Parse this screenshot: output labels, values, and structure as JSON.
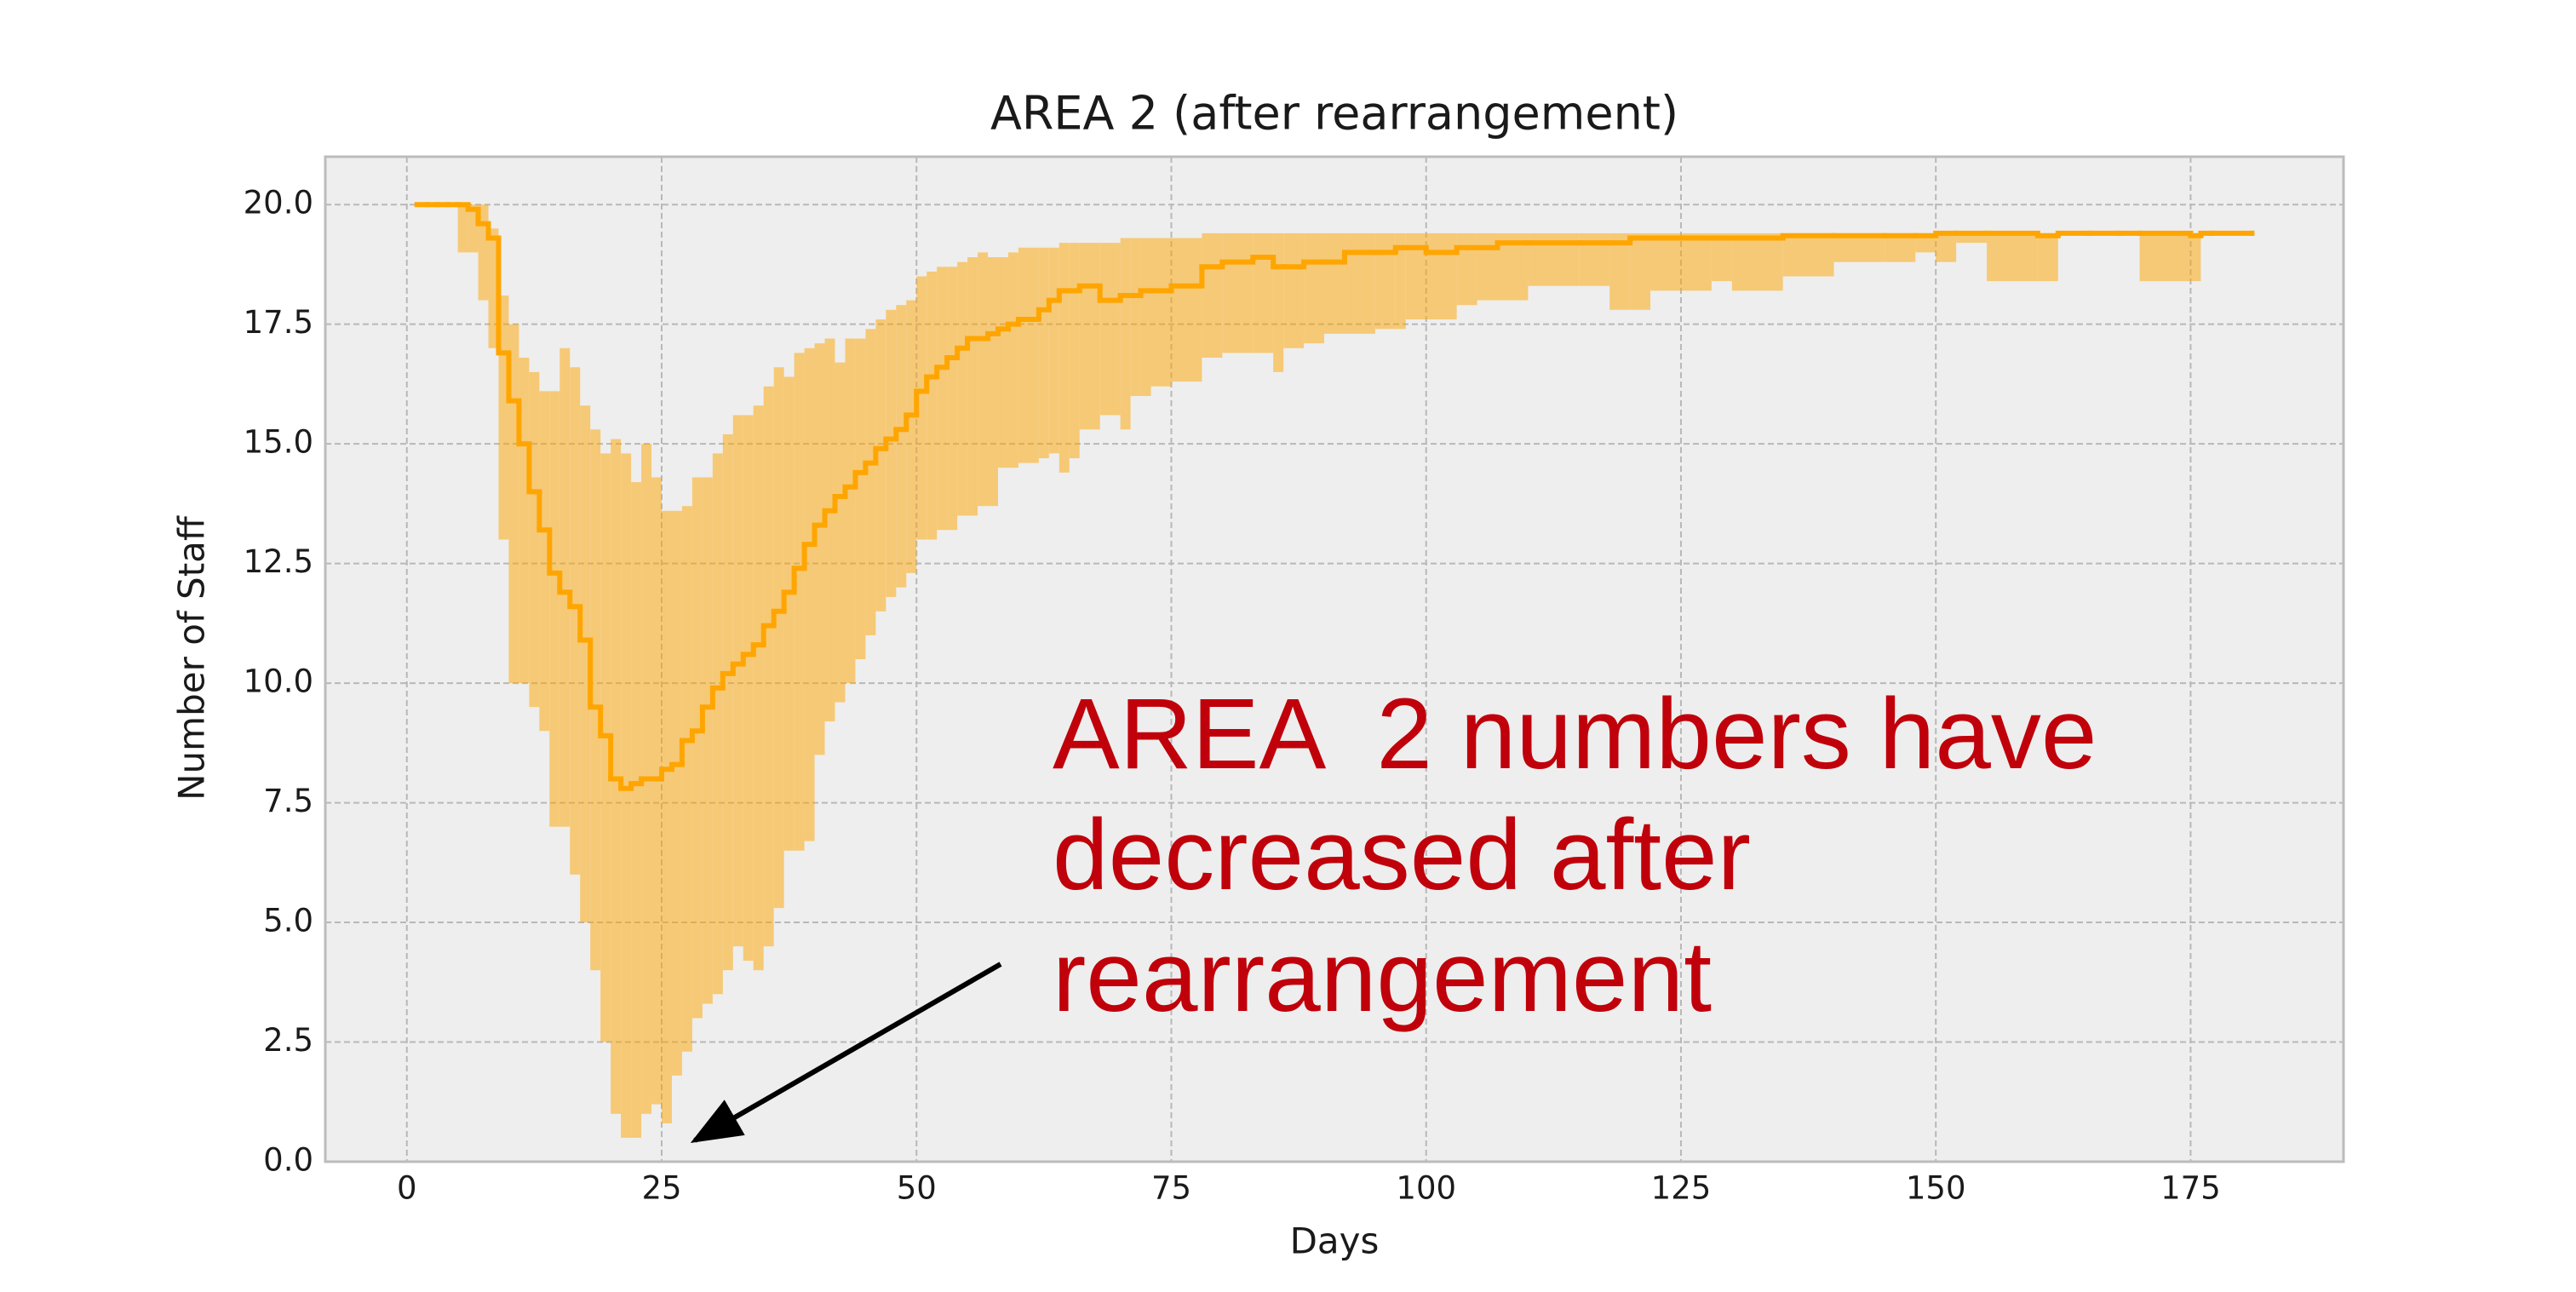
{
  "chart_data": {
    "type": "step-band",
    "title": "AREA 2 (after rearrangement)",
    "x_label": "Days",
    "y_label": "Number of Staff",
    "annotation": [
      "AREA  2 numbers have",
      "decreased after",
      "rearrangement"
    ],
    "annotation_color": "#c0000a",
    "color": "#ffa500",
    "band_alpha": 0.5,
    "grid": true,
    "xlim": [
      -8,
      190
    ],
    "ylim": [
      0,
      21
    ],
    "xticks": [
      0,
      25,
      50,
      75,
      100,
      125,
      150,
      175
    ],
    "yticks": [
      {
        "value": 0,
        "label": "0.0"
      },
      2.5,
      {
        "value": 5,
        "label": "5.0"
      },
      7.5,
      {
        "value": 10,
        "label": "10.0"
      },
      12.5,
      {
        "value": 15,
        "label": "15.0"
      },
      17.5,
      {
        "value": 20,
        "label": "20.0"
      }
    ],
    "x": [
      1,
      2,
      3,
      4,
      5,
      6,
      7,
      8,
      9,
      10,
      11,
      12,
      13,
      14,
      15,
      16,
      17,
      18,
      19,
      20,
      21,
      22,
      23,
      24,
      25,
      26,
      27,
      28,
      29,
      30,
      31,
      32,
      33,
      34,
      35,
      36,
      37,
      38,
      39,
      40,
      41,
      42,
      43,
      44,
      45,
      46,
      47,
      48,
      49,
      50,
      51,
      52,
      53,
      54,
      55,
      56,
      57,
      58,
      59,
      60,
      62,
      63,
      64,
      65,
      66,
      68,
      70,
      71,
      72,
      73,
      75,
      78,
      80,
      83,
      85,
      86,
      88,
      90,
      92,
      95,
      97,
      98,
      100,
      103,
      105,
      107,
      110,
      115,
      118,
      120,
      122,
      125,
      128,
      130,
      135,
      140,
      145,
      148,
      150,
      152,
      155,
      160,
      162,
      165,
      168,
      170,
      175,
      176,
      177,
      181
    ],
    "values": [
      20,
      20,
      20,
      20,
      20,
      19.9,
      19.6,
      19.3,
      16.9,
      15.9,
      15.0,
      14.0,
      13.2,
      12.3,
      11.9,
      11.6,
      10.9,
      9.5,
      8.9,
      8.0,
      7.8,
      7.9,
      8.0,
      8.0,
      8.2,
      8.3,
      8.8,
      9.0,
      9.5,
      9.9,
      10.2,
      10.4,
      10.6,
      10.8,
      11.2,
      11.5,
      11.9,
      12.4,
      12.9,
      13.3,
      13.6,
      13.9,
      14.1,
      14.4,
      14.6,
      14.9,
      15.1,
      15.3,
      15.6,
      16.1,
      16.4,
      16.6,
      16.8,
      17.0,
      17.2,
      17.2,
      17.3,
      17.4,
      17.5,
      17.6,
      17.8,
      18.0,
      18.2,
      18.2,
      18.3,
      18.0,
      18.1,
      18.1,
      18.2,
      18.2,
      18.3,
      18.7,
      18.8,
      18.9,
      18.7,
      18.7,
      18.8,
      18.8,
      19.0,
      19.0,
      19.1,
      19.1,
      19.0,
      19.1,
      19.1,
      19.2,
      19.2,
      19.2,
      19.2,
      19.3,
      19.3,
      19.3,
      19.3,
      19.3,
      19.35,
      19.35,
      19.35,
      19.35,
      19.4,
      19.4,
      19.4,
      19.35,
      19.4,
      19.4,
      19.4,
      19.4,
      19.35,
      19.4,
      19.4,
      19.4
    ],
    "band_upper": [
      20,
      20,
      20,
      20,
      20,
      20,
      20,
      19.5,
      18.1,
      17.5,
      16.8,
      16.5,
      16.1,
      16.1,
      17.0,
      16.6,
      15.8,
      15.3,
      14.8,
      15.1,
      14.8,
      14.2,
      15.0,
      14.3,
      13.6,
      13.6,
      13.7,
      14.3,
      14.3,
      14.8,
      15.2,
      15.6,
      15.6,
      15.8,
      16.2,
      16.6,
      16.4,
      16.9,
      17.0,
      17.1,
      17.2,
      16.7,
      17.2,
      17.2,
      17.4,
      17.6,
      17.8,
      17.9,
      18.0,
      18.5,
      18.6,
      18.7,
      18.7,
      18.8,
      18.9,
      19.0,
      18.9,
      18.9,
      19.0,
      19.1,
      19.1,
      19.1,
      19.2,
      19.2,
      19.2,
      19.2,
      19.3,
      19.3,
      19.3,
      19.3,
      19.3,
      19.4,
      19.4,
      19.4,
      19.4,
      19.4,
      19.4,
      19.4,
      19.4,
      19.4,
      19.4,
      19.4,
      19.4,
      19.4,
      19.4,
      19.4,
      19.4,
      19.4,
      19.4,
      19.4,
      19.4,
      19.4,
      19.4,
      19.4,
      19.4,
      19.4,
      19.4,
      19.4,
      19.4,
      19.4,
      19.4,
      19.4,
      19.4,
      19.4,
      19.4,
      19.4,
      19.4,
      19.4,
      19.4,
      19.4
    ],
    "band_lower": [
      20,
      20,
      20,
      20,
      19.0,
      19.0,
      18.0,
      17.0,
      13.0,
      10.0,
      10.0,
      9.5,
      9.0,
      7.0,
      7.0,
      6.0,
      5.0,
      4.0,
      2.5,
      1.0,
      0.5,
      0.5,
      1.0,
      1.2,
      0.8,
      1.8,
      2.3,
      3.0,
      3.3,
      3.5,
      4.0,
      4.5,
      4.2,
      4.0,
      4.5,
      5.3,
      6.5,
      6.5,
      6.7,
      8.5,
      9.2,
      9.6,
      10.0,
      10.5,
      11.0,
      11.5,
      11.8,
      12.0,
      12.3,
      13.0,
      13.0,
      13.2,
      13.2,
      13.5,
      13.5,
      13.7,
      13.7,
      14.5,
      14.5,
      14.6,
      14.7,
      14.8,
      14.4,
      14.7,
      15.3,
      15.6,
      15.3,
      16.0,
      16.0,
      16.2,
      16.3,
      16.8,
      16.9,
      16.9,
      16.5,
      17.0,
      17.1,
      17.3,
      17.3,
      17.4,
      17.4,
      17.6,
      17.6,
      17.9,
      18.0,
      18.0,
      18.3,
      18.3,
      17.8,
      17.8,
      18.2,
      18.2,
      18.4,
      18.2,
      18.5,
      18.8,
      18.8,
      19.0,
      18.8,
      19.2,
      18.4,
      18.4,
      19.4,
      19.4,
      19.4,
      18.4,
      18.4,
      19.4,
      19.4,
      19.4
    ]
  }
}
